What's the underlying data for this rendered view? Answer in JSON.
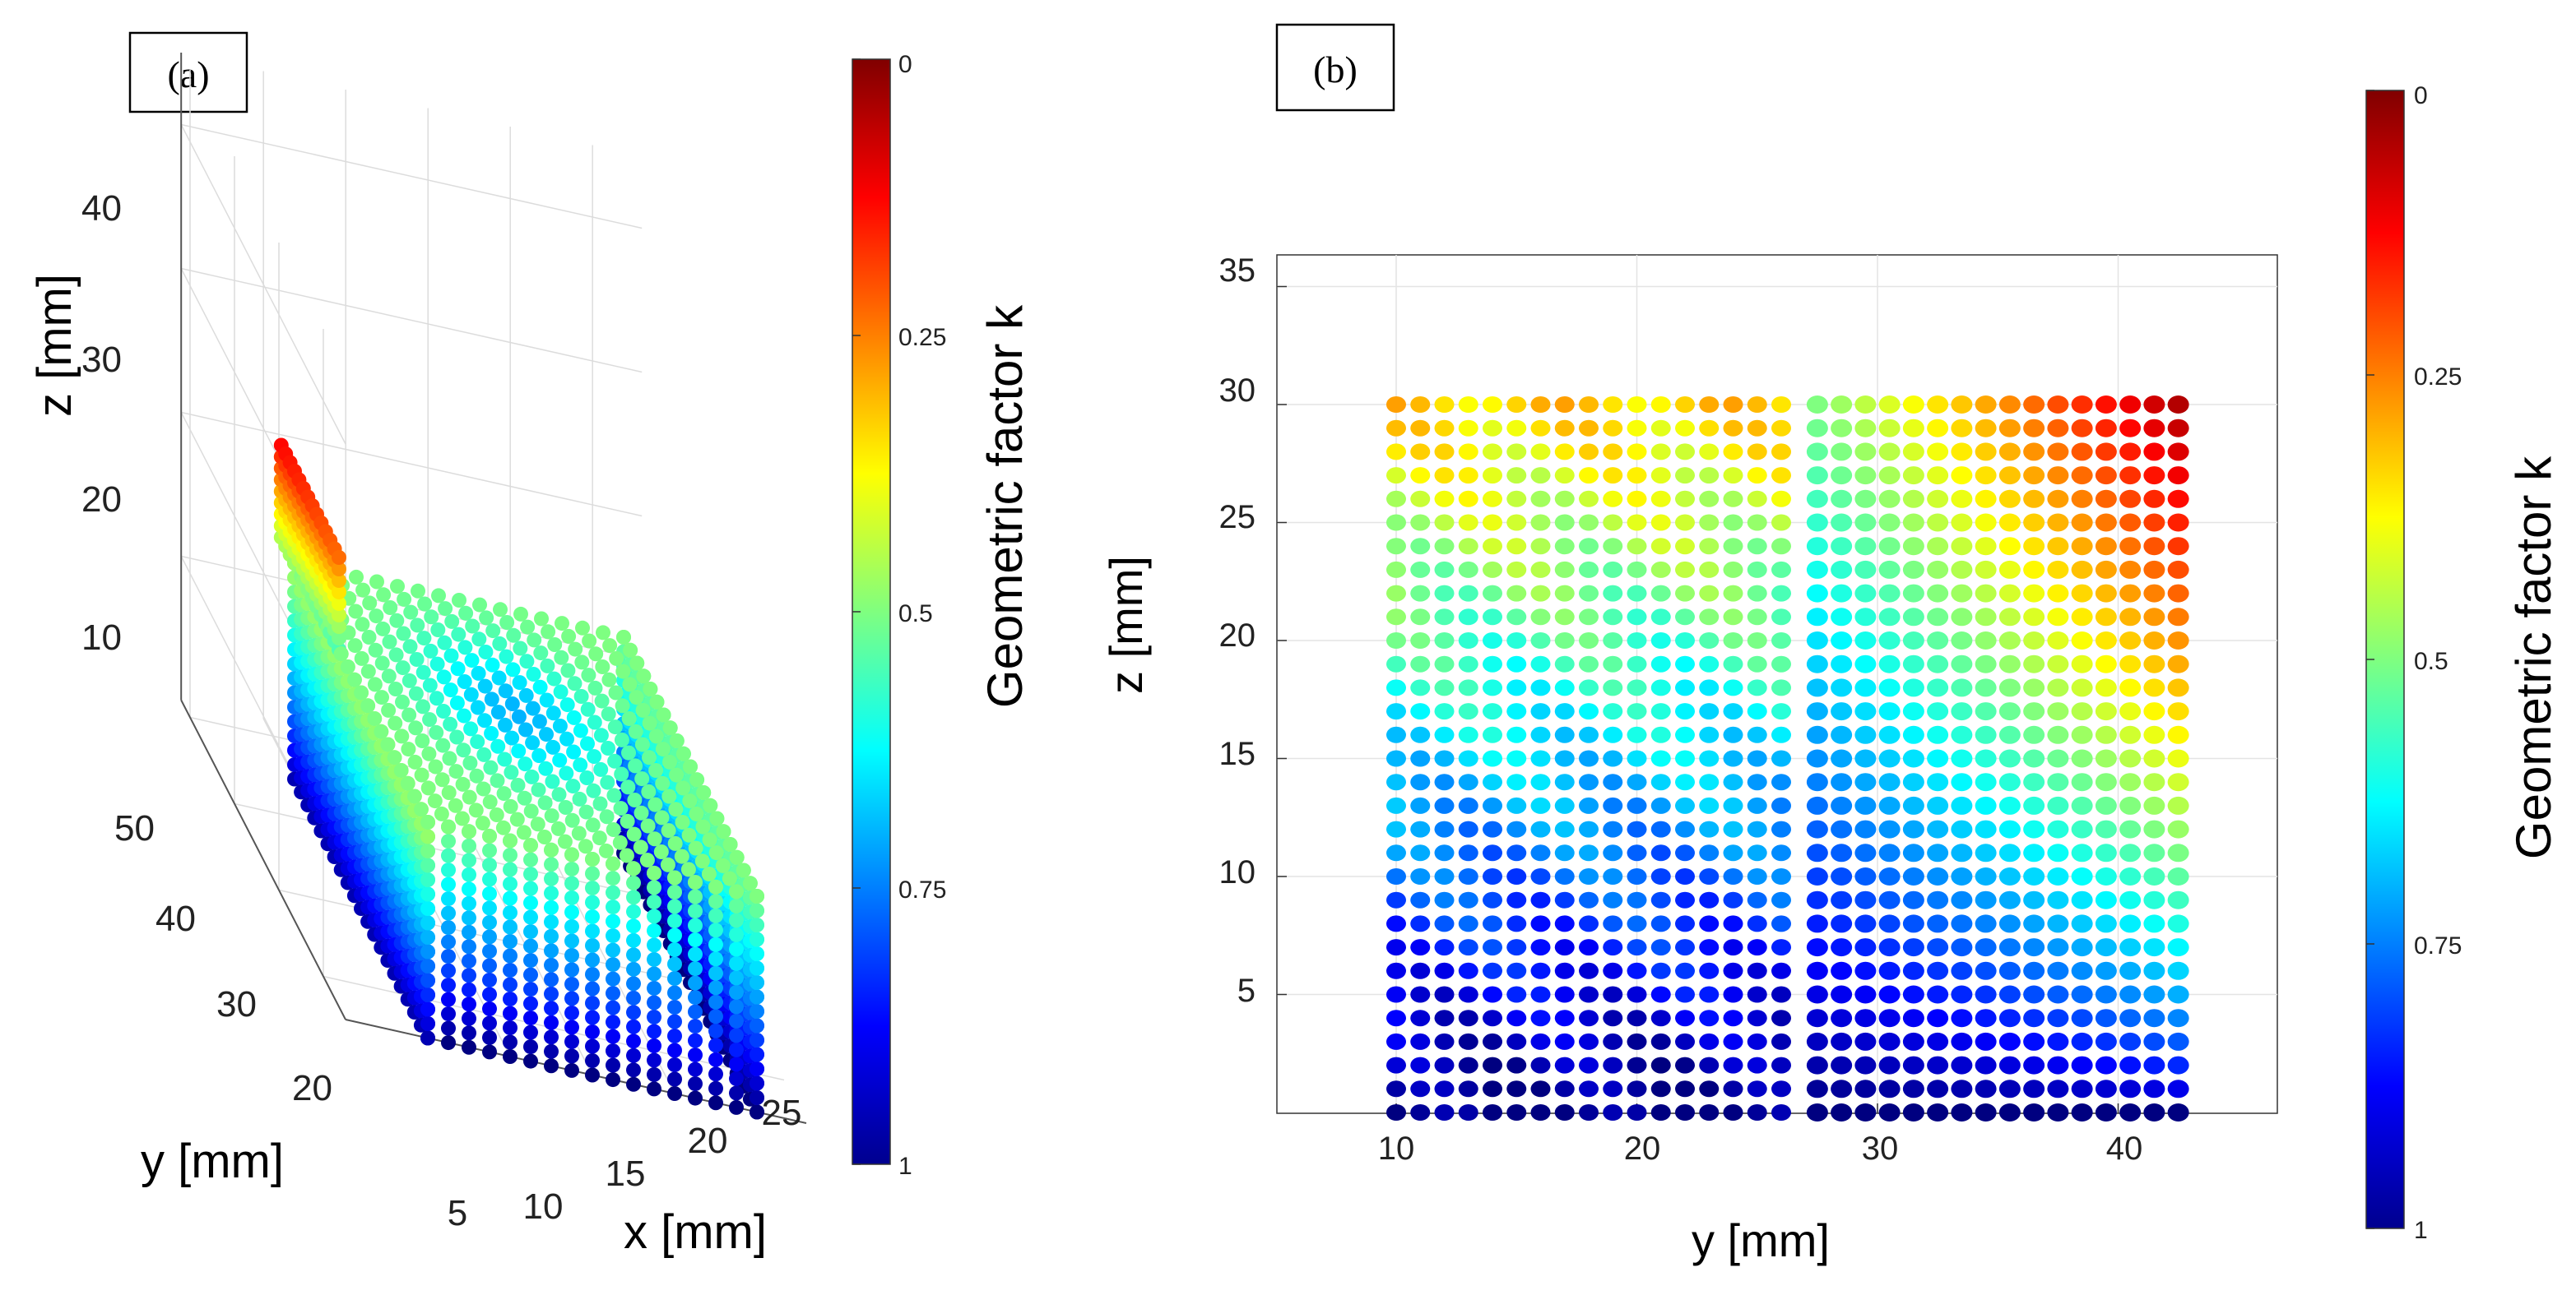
{
  "panels": {
    "a": {
      "label": "(a)"
    },
    "b": {
      "label": "(b)"
    }
  },
  "chart_data": [
    {
      "id": "a",
      "type": "scatter",
      "subtype": "3d-scatter",
      "panel_label": "(a)",
      "title": "",
      "xlabel": "x [mm]",
      "ylabel": "y [mm]",
      "zlabel": "z [mm]",
      "x_ticks": [
        "5",
        "10",
        "15",
        "20",
        "25"
      ],
      "y_ticks": [
        "20",
        "30",
        "40",
        "50"
      ],
      "z_ticks": [
        "10",
        "20",
        "30",
        "40"
      ],
      "xlim": [
        3,
        28
      ],
      "ylim": [
        15,
        52
      ],
      "zlim": [
        0,
        45
      ],
      "grid": true,
      "colorbar": {
        "label": "Geometric factor k",
        "ticks": [
          "0",
          "0.25",
          "0.5",
          "0.75",
          "1"
        ],
        "range": [
          0,
          1
        ],
        "colormap": "jet",
        "direction": "1 at bottom, 0 at top"
      },
      "geometry": {
        "block": {
          "x": [
            5,
            25
          ],
          "y": [
            15,
            45
          ],
          "z": [
            0,
            15
          ]
        },
        "fin": {
          "x": [
            5,
            6
          ],
          "y": [
            35,
            48
          ],
          "z": [
            15,
            22
          ]
        }
      }
    },
    {
      "id": "b",
      "type": "scatter",
      "panel_label": "(b)",
      "title": "",
      "xlabel": "y [mm]",
      "ylabel": "z [mm]",
      "x_ticks": [
        "10",
        "20",
        "30",
        "40"
      ],
      "y_ticks": [
        "5",
        "10",
        "15",
        "20",
        "25",
        "30",
        "35"
      ],
      "xlim": [
        5,
        47
      ],
      "ylim": [
        0,
        36
      ],
      "grid": true,
      "point_grid": {
        "y_range": [
          10,
          42
        ],
        "z_range": [
          0,
          30
        ],
        "step": 1
      },
      "colorbar": {
        "label": "Geometric factor k",
        "ticks": [
          "0",
          "0.25",
          "0.5",
          "0.75",
          "1"
        ],
        "range": [
          0,
          1
        ],
        "colormap": "jet",
        "direction": "1 at bottom, 0 at top"
      },
      "regions": [
        {
          "name": "left",
          "y_range": [
            10,
            26.5
          ],
          "k_at_z0": 1.0,
          "k_at_z30": 0.33
        },
        {
          "name": "right",
          "y_range": [
            27.5,
            42
          ],
          "k_at_z0": 1.0,
          "k_at_z30_y27": 0.5,
          "k_at_z30_y42": 0.05
        }
      ]
    }
  ]
}
